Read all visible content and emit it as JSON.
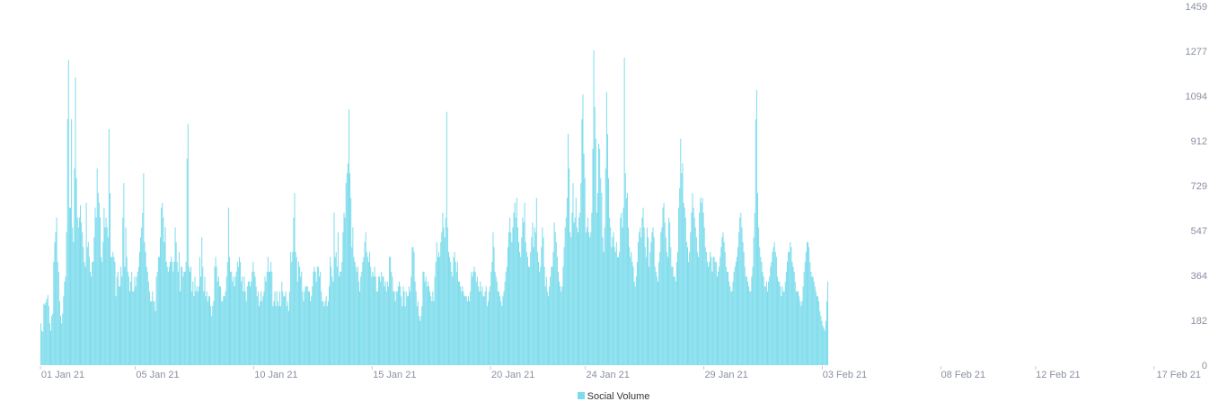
{
  "chart_data": {
    "type": "bar",
    "title": "",
    "xlabel": "",
    "ylabel": "",
    "ylim": [
      0,
      1459
    ],
    "y_axis_side": "right",
    "y_ticks": [
      "0",
      "182",
      "364",
      "547",
      "729",
      "912",
      "1094",
      "1277",
      "1459"
    ],
    "x_ticks": [
      "01 Jan 21",
      "05 Jan 21",
      "10 Jan 21",
      "15 Jan 21",
      "20 Jan 21",
      "24 Jan 21",
      "29 Jan 21",
      "03 Feb 21",
      "08 Feb 21",
      "12 Feb 21",
      "17 Feb 21"
    ],
    "x_tick_index": [
      0,
      4,
      9,
      14,
      19,
      23,
      28,
      33,
      38,
      42,
      47
    ],
    "x_range_days": [
      0,
      47.5
    ],
    "grid": false,
    "legend_position": "bottom-center",
    "color": "#7ddcec",
    "series": [
      {
        "name": "Social Volume",
        "bars_per_day": 24,
        "values": [
          170,
          140,
          135,
          250,
          245,
          255,
          270,
          285,
          240,
          170,
          140,
          200,
          210,
          420,
          500,
          540,
          600,
          420,
          380,
          260,
          200,
          170,
          210,
          280,
          340,
          360,
          540,
          1000,
          1240,
          640,
          640,
          1000,
          560,
          500,
          800,
          1170,
          760,
          600,
          560,
          600,
          650,
          580,
          540,
          480,
          420,
          400,
          660,
          480,
          500,
          440,
          380,
          360,
          420,
          420,
          520,
          640,
          600,
          800,
          700,
          660,
          600,
          440,
          420,
          500,
          640,
          560,
          600,
          560,
          520,
          960,
          700,
          440,
          440,
          460,
          440,
          420,
          280,
          360,
          380,
          320,
          320,
          400,
          360,
          600,
          740,
          400,
          560,
          440,
          380,
          360,
          300,
          340,
          380,
          300,
          300,
          360,
          320,
          360,
          380,
          400,
          460,
          520,
          560,
          620,
          780,
          500,
          460,
          400,
          380,
          340,
          300,
          260,
          260,
          300,
          260,
          260,
          220,
          360,
          380,
          440,
          440,
          520,
          640,
          660,
          600,
          500,
          560,
          420,
          400,
          380,
          400,
          420,
          440,
          420,
          380,
          420,
          560,
          500,
          420,
          380,
          460,
          300,
          400,
          400,
          360,
          380,
          380,
          420,
          840,
          980,
          400,
          380,
          400,
          300,
          340,
          280,
          360,
          300,
          320,
          300,
          320,
          440,
          360,
          520,
          400,
          300,
          360,
          280,
          300,
          260,
          280,
          280,
          240,
          200,
          240,
          260,
          400,
          440,
          400,
          340,
          360,
          320,
          320,
          260,
          260,
          280,
          280,
          300,
          360,
          420,
          640,
          440,
          380,
          380,
          340,
          360,
          320,
          360,
          380,
          420,
          400,
          440,
          420,
          340,
          360,
          300,
          360,
          300,
          260,
          320,
          340,
          340,
          320,
          340,
          380,
          420,
          380,
          360,
          320,
          280,
          300,
          240,
          260,
          300,
          260,
          280,
          300,
          360,
          340,
          380,
          440,
          380,
          380,
          420,
          380,
          240,
          260,
          300,
          240,
          300,
          260,
          240,
          300,
          240,
          340,
          300,
          280,
          280,
          300,
          240,
          260,
          220,
          300,
          460,
          420,
          460,
          600,
          700,
          460,
          440,
          340,
          420,
          400,
          360,
          380,
          300,
          260,
          300,
          320,
          320,
          320,
          300,
          300,
          260,
          280,
          320,
          380,
          400,
          380,
          340,
          400,
          400,
          360,
          380,
          300,
          260,
          260,
          240,
          260,
          280,
          240,
          260,
          320,
          440,
          400,
          360,
          340,
          620,
          440,
          460,
          400,
          540,
          360,
          380,
          380,
          420,
          540,
          620,
          600,
          740,
          780,
          820,
          1040,
          780,
          680,
          480,
          560,
          440,
          420,
          400,
          380,
          400,
          340,
          300,
          360,
          380,
          420,
          440,
          500,
          540,
          460,
          440,
          420,
          460,
          400,
          360,
          380,
          360,
          400,
          360,
          300,
          300,
          360,
          360,
          340,
          380,
          360,
          360,
          320,
          340,
          300,
          340,
          320,
          440,
          440,
          380,
          360,
          300,
          300,
          260,
          300,
          300,
          320,
          340,
          320,
          280,
          240,
          320,
          300,
          240,
          300,
          280,
          280,
          320,
          300,
          360,
          480,
          480,
          460,
          340,
          300,
          240,
          260,
          200,
          180,
          200,
          240,
          380,
          380,
          340,
          360,
          320,
          340,
          320,
          300,
          280,
          260,
          300,
          260,
          360,
          420,
          500,
          440,
          460,
          440,
          500,
          540,
          620,
          560,
          520,
          600,
          1030,
          560,
          460,
          440,
          420,
          380,
          360,
          440,
          460,
          420,
          380,
          420,
          340,
          340,
          320,
          300,
          320,
          300,
          280,
          280,
          280,
          260,
          280,
          260,
          300,
          380,
          360,
          380,
          400,
          380,
          340,
          360,
          320,
          300,
          340,
          300,
          320,
          280,
          280,
          300,
          320,
          240,
          260,
          300,
          320,
          380,
          420,
          540,
          480,
          380,
          360,
          340,
          300,
          300,
          280,
          260,
          240,
          280,
          300,
          340,
          380,
          400,
          480,
          540,
          600,
          540,
          500,
          560,
          620,
          660,
          600,
          680,
          560,
          500,
          460,
          440,
          520,
          600,
          580,
          660,
          500,
          460,
          440,
          400,
          400,
          460,
          520,
          580,
          480,
          560,
          540,
          680,
          460,
          420,
          380,
          400,
          480,
          560,
          520,
          400,
          320,
          360,
          300,
          280,
          320,
          360,
          400,
          400,
          460,
          580,
          540,
          500,
          440,
          380,
          340,
          320,
          300,
          320,
          400,
          480,
          560,
          600,
          680,
          940,
          800,
          540,
          520,
          620,
          740,
          580,
          600,
          680,
          560,
          540,
          600,
          620,
          740,
          1000,
          1100,
          860,
          760,
          540,
          560,
          600,
          540,
          520,
          540,
          620,
          880,
          1280,
          1050,
          920,
          620,
          700,
          900,
          880,
          760,
          700,
          520,
          460,
          560,
          800,
          1110,
          940,
          760,
          600,
          560,
          480,
          520,
          540,
          480,
          460,
          500,
          440,
          440,
          460,
          600,
          620,
          560,
          640,
          1250,
          780,
          680,
          700,
          560,
          480,
          440,
          460,
          420,
          400,
          340,
          320,
          360,
          420,
          500,
          540,
          560,
          520,
          600,
          640,
          560,
          480,
          440,
          560,
          520,
          400,
          460,
          500,
          540,
          560,
          520,
          400,
          380,
          360,
          340,
          420,
          460,
          540,
          560,
          640,
          660,
          580,
          520,
          460,
          440,
          600,
          580,
          480,
          400,
          400,
          360,
          360,
          340,
          420,
          460,
          640,
          720,
          920,
          780,
          820,
          660,
          640,
          600,
          500,
          480,
          420,
          460,
          540,
          620,
          700,
          640,
          600,
          560,
          520,
          460,
          440,
          620,
          680,
          660,
          680,
          620,
          560,
          480,
          460,
          420,
          400,
          420,
          460,
          440,
          380,
          440,
          440,
          420,
          420,
          360,
          380,
          400,
          440,
          480,
          520,
          540,
          500,
          460,
          400,
          380,
          380,
          340,
          320,
          300,
          300,
          340,
          380,
          400,
          420,
          440,
          480,
          540,
          600,
          620,
          560,
          500,
          460,
          400,
          360,
          360,
          340,
          320,
          300,
          300,
          360,
          400,
          520,
          620,
          1000,
          1120,
          700,
          560,
          480,
          440,
          420,
          380,
          360,
          320,
          320,
          340,
          300,
          340,
          360,
          400,
          420,
          460,
          480,
          500,
          460,
          440,
          360,
          340,
          340,
          320,
          280,
          320,
          300,
          300,
          340,
          380,
          420,
          460,
          460,
          500,
          480,
          420,
          400,
          380,
          340,
          300,
          300,
          300,
          280,
          260,
          240,
          260,
          320,
          380,
          420,
          460,
          500,
          500,
          480,
          420,
          380,
          360,
          360,
          340,
          320,
          300,
          280,
          280,
          260,
          220,
          200,
          180,
          160,
          150,
          140,
          180,
          260,
          340
        ]
      }
    ]
  }
}
